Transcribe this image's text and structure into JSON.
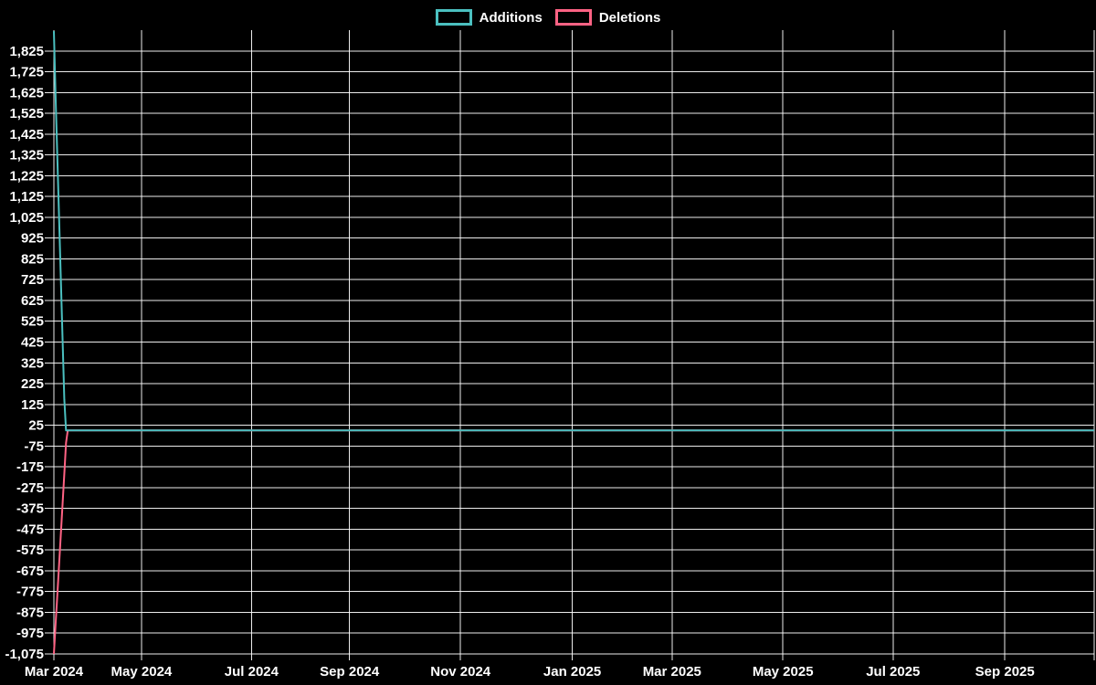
{
  "page": {
    "background": "#000000",
    "text_color": "#ffffff"
  },
  "legend": {
    "position": "top-center",
    "items": [
      {
        "label": "Additions",
        "color": "#4bc0c0"
      },
      {
        "label": "Deletions",
        "color": "#ff6384"
      }
    ]
  },
  "chart_data": {
    "type": "line",
    "title": "",
    "xlabel": "",
    "ylabel": "",
    "grid": true,
    "legend_position": "top",
    "background": "#000000",
    "gridline_color": "rgba(255,255,255,0.92)",
    "text_color": "#ffffff",
    "x_axis": {
      "kind": "time-daily",
      "range_days": [
        0,
        600
      ],
      "tick_labels": [
        "Mar 2024",
        "May 2024",
        "Jul 2024",
        "Sep 2024",
        "Nov 2024",
        "Jan 2025",
        "Mar 2025",
        "May 2025",
        "Jul 2025",
        "Sep 2025"
      ],
      "tick_days": [
        0,
        50.5,
        114,
        170.5,
        234.5,
        299,
        356.5,
        420.5,
        484,
        548.5
      ],
      "extra_gridline_day": 600
    },
    "y_axis": {
      "min": -1075,
      "max": 1925,
      "step": 100,
      "tick_values": [
        1825,
        1725,
        1625,
        1525,
        1425,
        1325,
        1225,
        1125,
        1025,
        925,
        825,
        725,
        625,
        525,
        425,
        325,
        225,
        125,
        25,
        -75,
        -175,
        -275,
        -375,
        -475,
        -575,
        -675,
        -775,
        -875,
        -975,
        -1075
      ],
      "tick_labels": [
        "1,825",
        "1,725",
        "1,625",
        "1,525",
        "1,425",
        "1,325",
        "1,225",
        "1,125",
        "1,025",
        "925",
        "825",
        "725",
        "625",
        "525",
        "425",
        "325",
        "225",
        "125",
        "25",
        "-75",
        "-175",
        "-275",
        "-375",
        "-475",
        "-575",
        "-675",
        "-775",
        "-875",
        "-975",
        "-1,075"
      ]
    },
    "series": [
      {
        "name": "Deletions",
        "color": "#ff6384",
        "line_width": 2,
        "points": [
          [
            0,
            -1075
          ],
          [
            1,
            -930
          ],
          [
            2,
            -790
          ],
          [
            3,
            -645
          ],
          [
            4,
            -500
          ],
          [
            5,
            -355
          ],
          [
            6,
            -210
          ],
          [
            7,
            -60
          ],
          [
            8,
            0
          ],
          [
            600,
            0
          ]
        ]
      },
      {
        "name": "Additions",
        "color": "#4bc0c0",
        "line_width": 2,
        "points": [
          [
            0,
            1920
          ],
          [
            1,
            1600
          ],
          [
            2,
            1310
          ],
          [
            3,
            1020
          ],
          [
            4,
            730
          ],
          [
            5,
            440
          ],
          [
            6,
            150
          ],
          [
            7,
            0
          ],
          [
            600,
            0
          ]
        ]
      }
    ]
  }
}
